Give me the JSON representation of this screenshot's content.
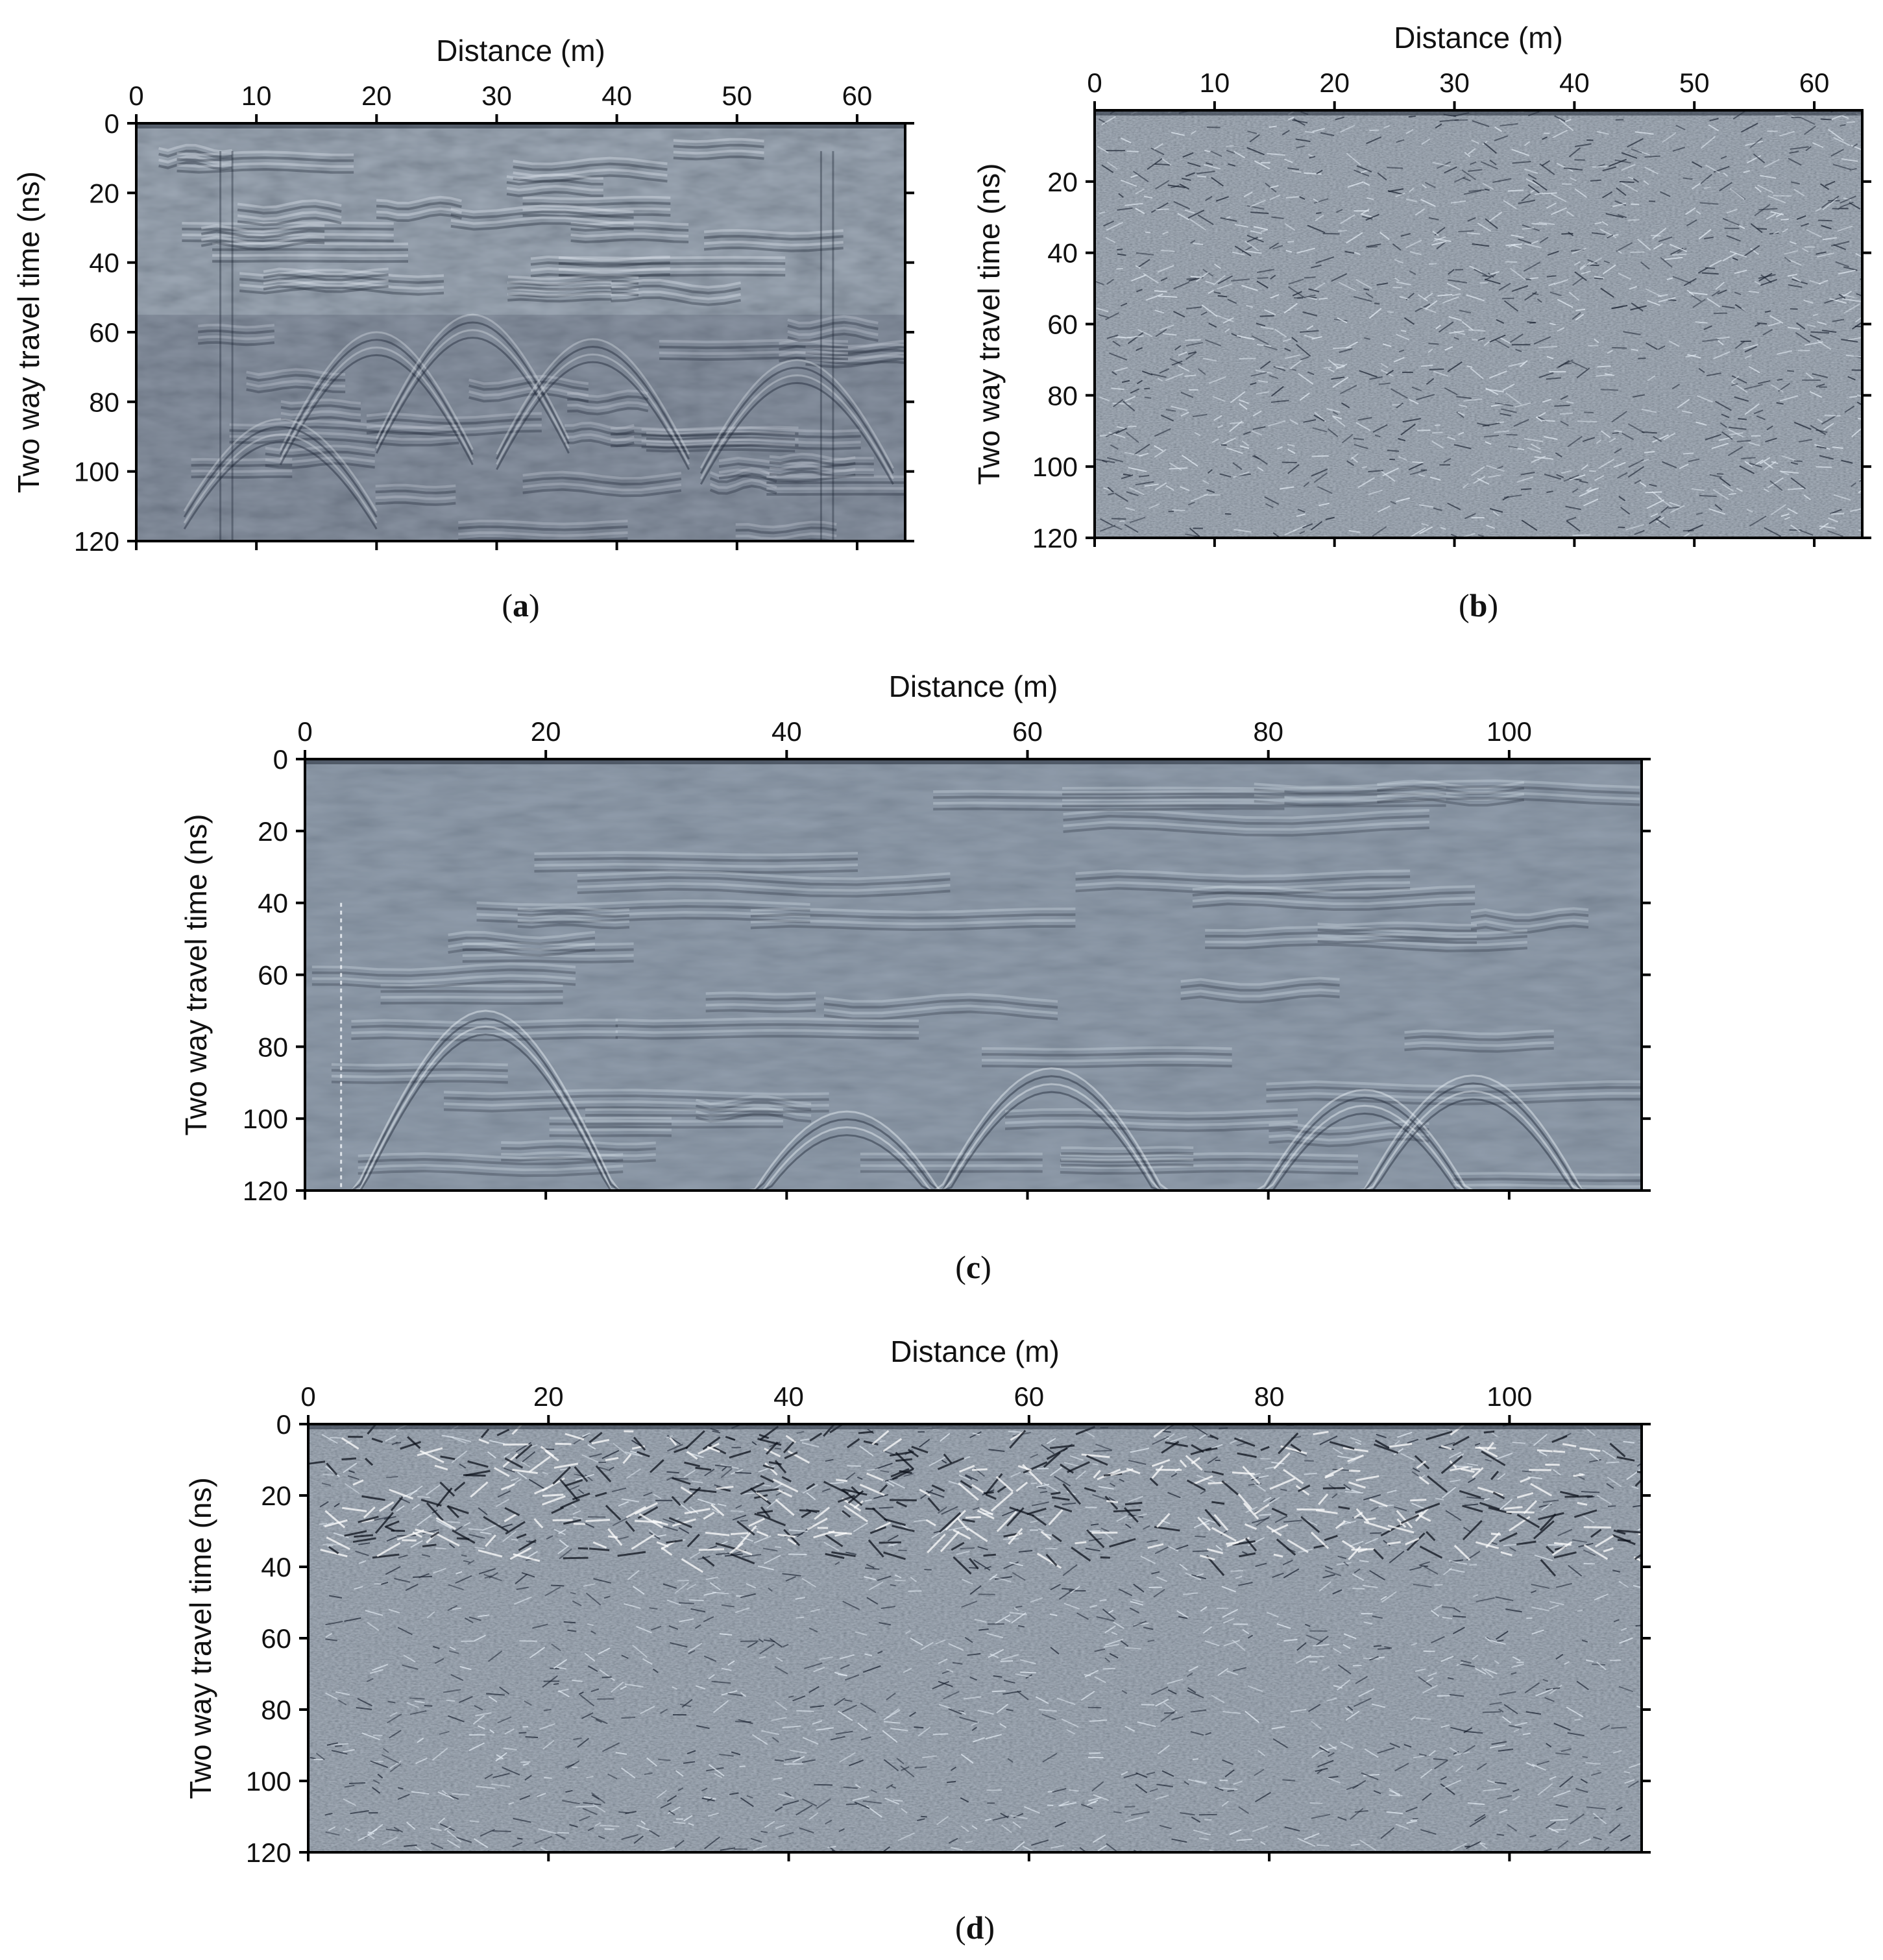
{
  "figure": {
    "background_color": "#ffffff",
    "radargram_base_color": "#7b8a9c",
    "radargram_light_color": "#e4ecf4",
    "radargram_dark_color": "#1c2433"
  },
  "chart_data": [
    {
      "id": "a",
      "type": "heatmap",
      "content": "GPR radargram",
      "title": "",
      "xlabel": "Distance (m)",
      "ylabel": "Two way travel time (ns)",
      "xlim": [
        0,
        64
      ],
      "ylim": [
        0,
        120
      ],
      "y_inverted": true,
      "x_axis_position": "top",
      "xticks": [
        0,
        10,
        20,
        30,
        40,
        50,
        60
      ],
      "yticks": [
        0,
        20,
        40,
        60,
        80,
        100,
        120
      ],
      "caption": {
        "open": "(",
        "letter": "a",
        "close": ")"
      },
      "texture": "low-frequency reflections and hyperbolic diffractions, stronger below 50 ns"
    },
    {
      "id": "b",
      "type": "heatmap",
      "content": "GPR radargram",
      "title": "",
      "xlabel": "Distance (m)",
      "ylabel": "Two way travel time (ns)",
      "xlim": [
        0,
        64
      ],
      "ylim": [
        0,
        120
      ],
      "y_inverted": true,
      "x_axis_position": "top",
      "xticks": [
        0,
        10,
        20,
        30,
        40,
        50,
        60
      ],
      "yticks": [
        20,
        40,
        60,
        80,
        100,
        120
      ],
      "caption": {
        "open": "(",
        "letter": "b",
        "close": ")"
      },
      "texture": "dense high-frequency noise across the whole section"
    },
    {
      "id": "c",
      "type": "heatmap",
      "content": "GPR radargram",
      "title": "",
      "xlabel": "Distance (m)",
      "ylabel": "Two way travel time (ns)",
      "xlim": [
        0,
        111
      ],
      "ylim": [
        0,
        120
      ],
      "y_inverted": true,
      "x_axis_position": "top",
      "xticks": [
        0,
        20,
        40,
        60,
        80,
        100
      ],
      "yticks": [
        0,
        20,
        40,
        60,
        80,
        100,
        120
      ],
      "caption": {
        "open": "(",
        "letter": "c",
        "close": ")"
      },
      "texture": "smooth low-frequency section with diffraction hyperbolas near 85-95 ns"
    },
    {
      "id": "d",
      "type": "heatmap",
      "content": "GPR radargram",
      "title": "",
      "xlabel": "Distance (m)",
      "ylabel": "Two way travel time (ns)",
      "xlim": [
        0,
        111
      ],
      "ylim": [
        0,
        120
      ],
      "y_inverted": true,
      "x_axis_position": "top",
      "xticks": [
        0,
        20,
        40,
        60,
        80,
        100
      ],
      "yticks": [
        0,
        20,
        40,
        60,
        80,
        100,
        120
      ],
      "caption": {
        "open": "(",
        "letter": "d",
        "close": ")"
      },
      "texture": "high-contrast shallow reflections above 40 ns, fine noise below"
    }
  ]
}
